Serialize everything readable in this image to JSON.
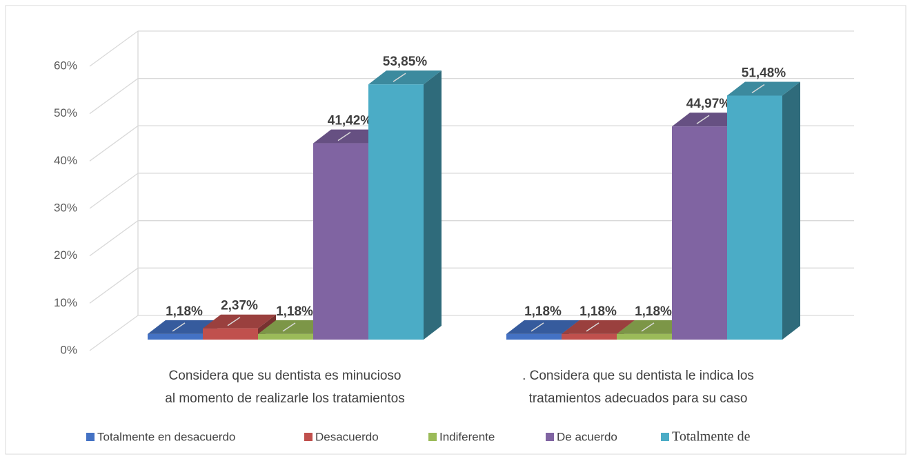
{
  "chart_data": {
    "type": "bar3d",
    "categories": [
      [
        "Considera que su dentista es minucioso",
        "al momento de realizarle los tratamientos"
      ],
      [
        ". Considera que su dentista le indica los",
        "tratamientos adecuados para su caso"
      ]
    ],
    "series": [
      {
        "name": "Totalmente en desacuerdo",
        "color": "#4472c4",
        "values": [
          1.18,
          1.18
        ],
        "value_labels": [
          "1,18%",
          "1,18%"
        ]
      },
      {
        "name": "Desacuerdo",
        "color": "#c0504d",
        "values": [
          2.37,
          1.18
        ],
        "value_labels": [
          "2,37%",
          "1,18%"
        ]
      },
      {
        "name": "Indiferente",
        "color": "#9bbb59",
        "values": [
          1.18,
          1.18
        ],
        "value_labels": [
          "1,18%",
          "1,18%"
        ]
      },
      {
        "name": "De acuerdo",
        "color": "#8064a2",
        "values": [
          41.42,
          44.97
        ],
        "value_labels": [
          "41,42%",
          "44,97%"
        ]
      },
      {
        "name": "Totalmente de",
        "color": "#4bacc6",
        "values": [
          53.85,
          51.48
        ],
        "value_labels": [
          "53,85%",
          "51,48%"
        ]
      }
    ],
    "ylim": [
      0,
      60
    ],
    "yticks": [
      {
        "value": 0,
        "label": "0%"
      },
      {
        "value": 10,
        "label": "10%"
      },
      {
        "value": 20,
        "label": "20%"
      },
      {
        "value": 30,
        "label": "30%"
      },
      {
        "value": 40,
        "label": "40%"
      },
      {
        "value": 50,
        "label": "50%"
      },
      {
        "value": 60,
        "label": "60%"
      }
    ],
    "grid": true,
    "legend": "bottom"
  }
}
